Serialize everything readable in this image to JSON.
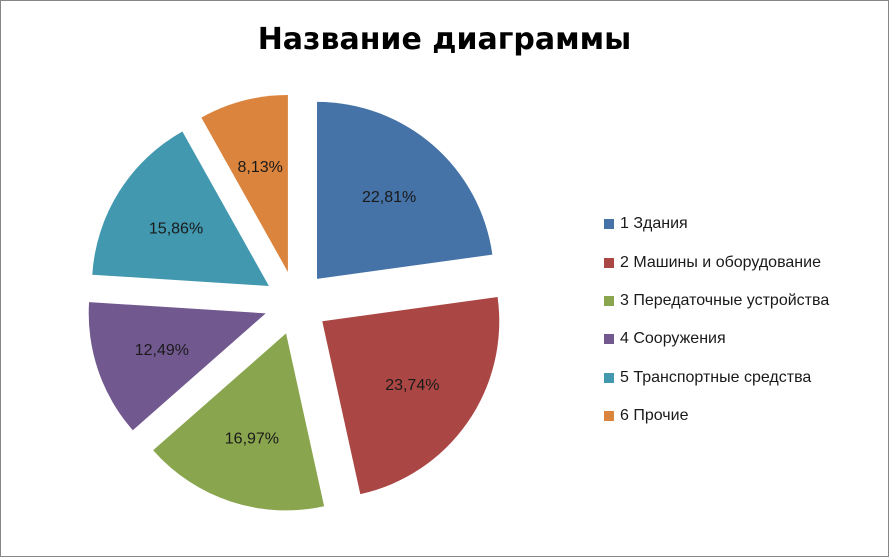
{
  "chart_data": {
    "type": "pie",
    "title": "Название диаграммы",
    "legend_position": "right",
    "slices": [
      {
        "name": "1 Здания",
        "value": 22.81,
        "label": "22,81%",
        "color": "#4572A7"
      },
      {
        "name": "2 Машины и оборудование",
        "value": 23.74,
        "label": "23,74%",
        "color": "#AA4643"
      },
      {
        "name": "3 Передаточные устройства",
        "value": 16.97,
        "label": "16,97%",
        "color": "#89A54E"
      },
      {
        "name": "4 Сооружения",
        "value": 12.49,
        "label": "12,49%",
        "color": "#71588F"
      },
      {
        "name": "5 Транспортные средства",
        "value": 15.86,
        "label": "15,86%",
        "color": "#4198AF"
      },
      {
        "name": "6 Прочие",
        "value": 8.13,
        "label": "8,13%",
        "color": "#DB843D"
      }
    ]
  }
}
